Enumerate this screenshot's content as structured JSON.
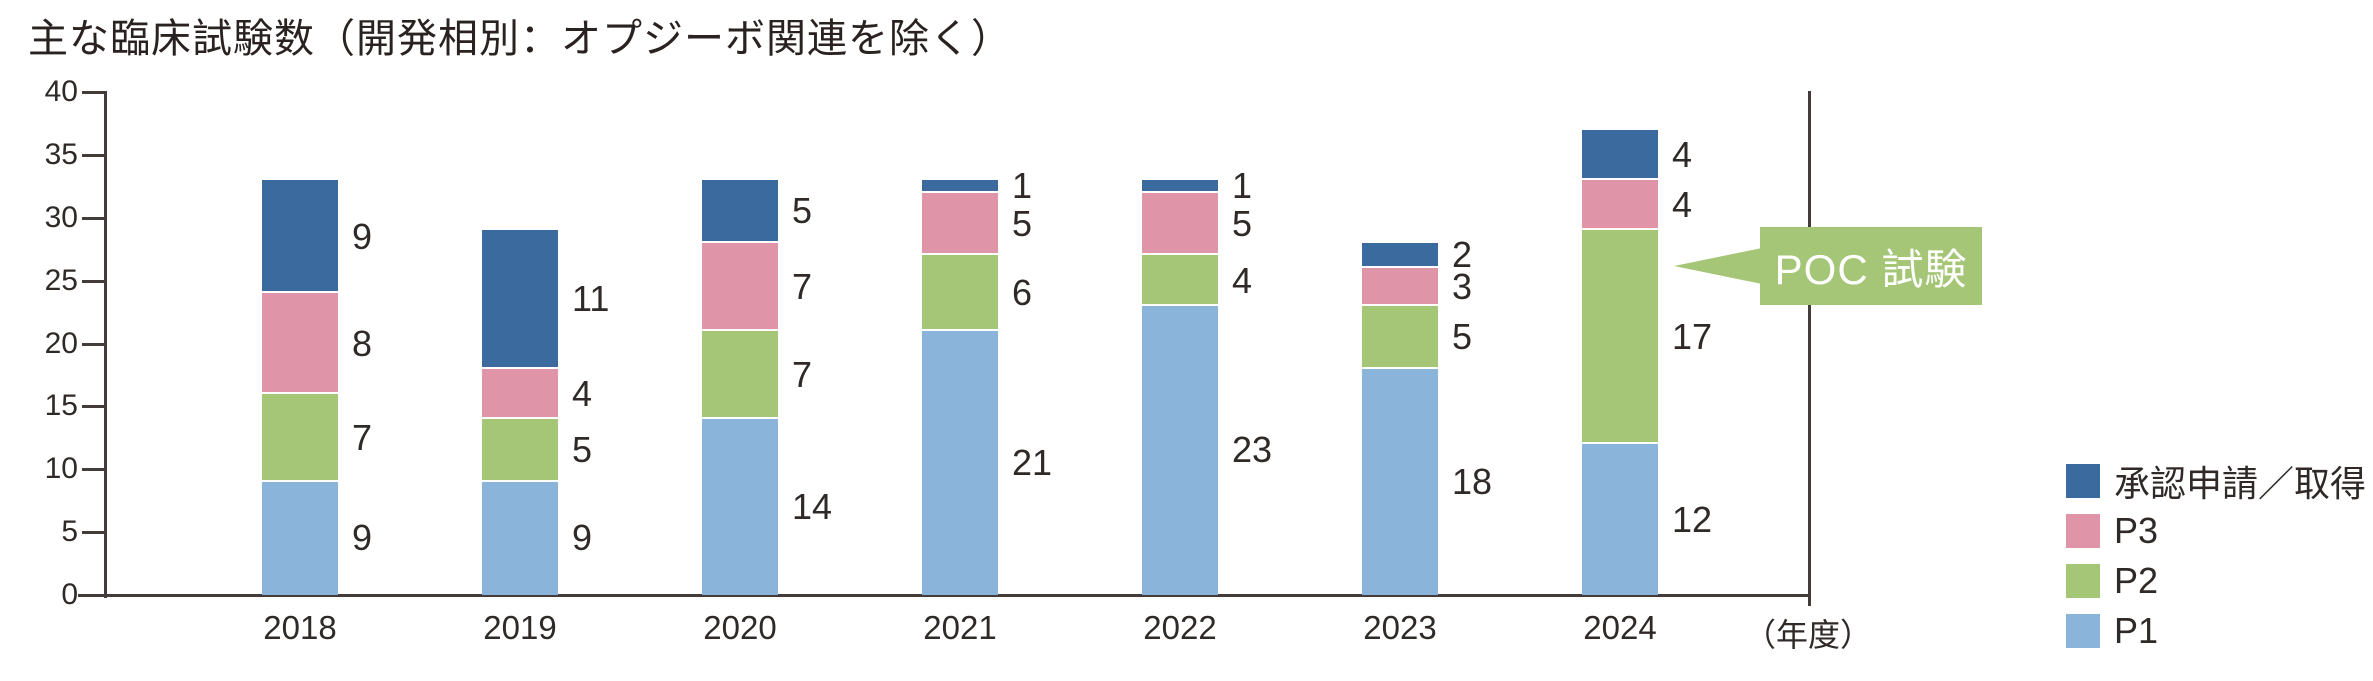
{
  "title": "主な臨床試験数（開発相別：オプジーボ関連を除く）",
  "x_axis_unit_label": "（年度）",
  "annotation": {
    "label": "POC 試験",
    "color": "#a5c677"
  },
  "legend": {
    "position": "right-bottom",
    "items": [
      {
        "label": "承認申請／取得",
        "color": "#3b6a9e"
      },
      {
        "label": "P3",
        "color": "#e094a8"
      },
      {
        "label": "P2",
        "color": "#a5c677"
      },
      {
        "label": "P1",
        "color": "#8ab4da"
      }
    ]
  },
  "chart_data": {
    "type": "bar",
    "stacked": true,
    "title": "主な臨床試験数（開発相別：オプジーボ関連を除く）",
    "categories": [
      "2018",
      "2019",
      "2020",
      "2021",
      "2022",
      "2023",
      "2024"
    ],
    "series": [
      {
        "name": "P1",
        "color": "#8ab4da",
        "values": [
          9,
          9,
          14,
          21,
          23,
          18,
          12
        ]
      },
      {
        "name": "P2",
        "color": "#a5c677",
        "values": [
          7,
          5,
          7,
          6,
          4,
          5,
          17
        ]
      },
      {
        "name": "P3",
        "color": "#e094a8",
        "values": [
          8,
          4,
          7,
          5,
          5,
          3,
          4
        ]
      },
      {
        "name": "承認申請／取得",
        "color": "#3b6a9e",
        "values": [
          9,
          11,
          5,
          1,
          1,
          2,
          4
        ]
      }
    ],
    "totals": [
      33,
      29,
      33,
      33,
      33,
      28,
      37
    ],
    "ylim": [
      0,
      40
    ],
    "y_ticks": [
      0,
      5,
      10,
      15,
      20,
      25,
      30,
      35,
      40
    ],
    "xlabel": "（年度）",
    "ylabel": "",
    "grid": false,
    "legend_position": "right",
    "annotation_target": {
      "category": "2024",
      "series": "P2",
      "label": "POC 試験"
    }
  }
}
